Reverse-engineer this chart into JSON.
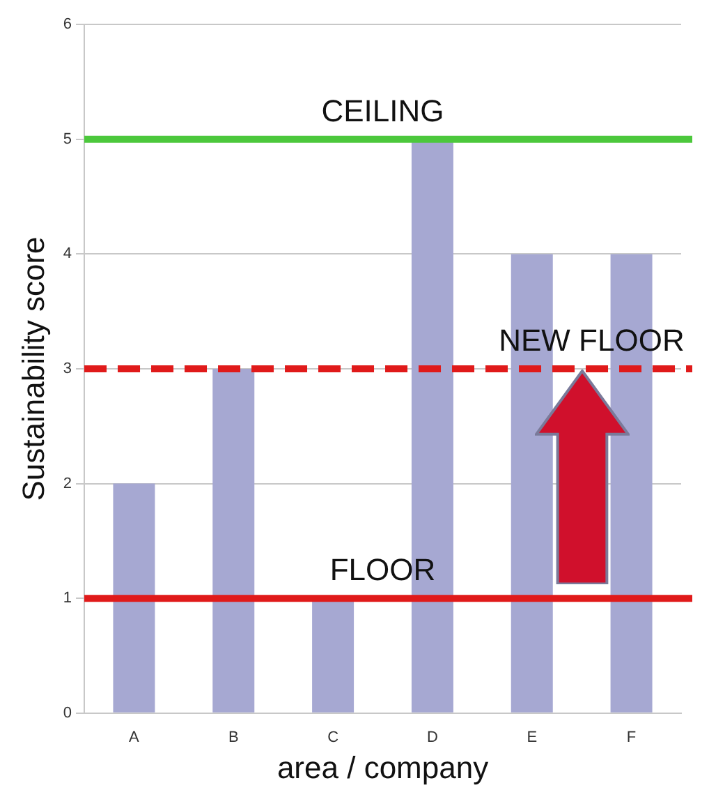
{
  "chart_data": {
    "type": "bar",
    "xlabel": "area / company",
    "ylabel": "Sustainability score",
    "categories": [
      "A",
      "B",
      "C",
      "D",
      "E",
      "F"
    ],
    "values": [
      2,
      3,
      1,
      5,
      4,
      4
    ],
    "color": "#a6a8d2",
    "ylim": [
      0,
      6
    ],
    "yticks": [
      0,
      1,
      2,
      3,
      4,
      5,
      6
    ],
    "grid": "y",
    "ref_lines": [
      {
        "axis": "y",
        "value": 5,
        "label": "CEILING",
        "color": "#4cc83c",
        "line_style": "solid"
      },
      {
        "axis": "y",
        "value": 3,
        "label": "NEW FLOOR",
        "color": "#e01a1a",
        "line_style": "dashed"
      },
      {
        "axis": "y",
        "value": 1,
        "label": "FLOOR",
        "color": "#e01a1a",
        "line_style": "solid"
      }
    ]
  }
}
